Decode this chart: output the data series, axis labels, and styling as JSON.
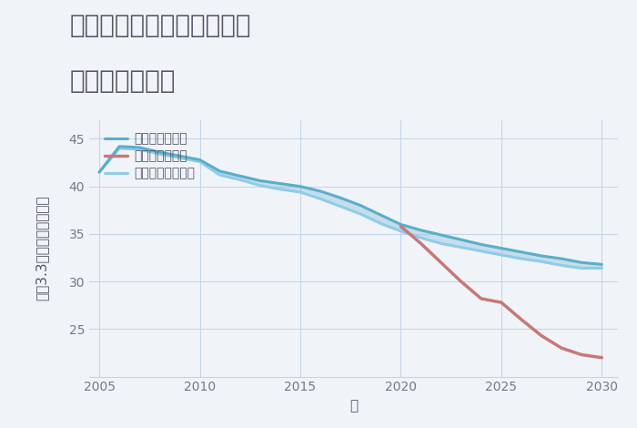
{
  "title_line1": "兵庫県姫路市野里月丘町の",
  "title_line2": "土地の価格推移",
  "xlabel": "年",
  "ylabel": "坪（3.3㎡）単価（万円）",
  "background_color": "#f0f4f8",
  "plot_bg_color": "#f0f4f8",
  "good_scenario": {
    "label": "グッドシナリオ",
    "color": "#5aaecb",
    "x": [
      2005,
      2006,
      2007,
      2008,
      2009,
      2010,
      2011,
      2012,
      2013,
      2014,
      2015,
      2016,
      2017,
      2018,
      2019,
      2020,
      2021,
      2022,
      2023,
      2024,
      2025,
      2026,
      2027,
      2028,
      2029,
      2030
    ],
    "y": [
      41.5,
      44.2,
      44.1,
      43.6,
      43.2,
      42.8,
      41.6,
      41.1,
      40.6,
      40.3,
      40.0,
      39.5,
      38.8,
      38.0,
      37.0,
      36.0,
      35.4,
      34.9,
      34.4,
      33.9,
      33.5,
      33.1,
      32.7,
      32.4,
      32.0,
      31.8
    ]
  },
  "bad_scenario": {
    "label": "バッドシナリオ",
    "color": "#c87878",
    "x": [
      2020,
      2021,
      2022,
      2023,
      2024,
      2025,
      2026,
      2027,
      2028,
      2029,
      2030
    ],
    "y": [
      35.8,
      34.0,
      32.0,
      30.0,
      28.2,
      27.8,
      26.0,
      24.3,
      23.0,
      22.3,
      22.0
    ]
  },
  "normal_scenario": {
    "label": "ノーマルシナリオ",
    "color": "#90cce8",
    "x": [
      2005,
      2006,
      2007,
      2008,
      2009,
      2010,
      2011,
      2012,
      2013,
      2014,
      2015,
      2016,
      2017,
      2018,
      2019,
      2020,
      2021,
      2022,
      2023,
      2024,
      2025,
      2026,
      2027,
      2028,
      2029,
      2030
    ],
    "y": [
      41.5,
      44.0,
      43.9,
      43.4,
      43.0,
      42.6,
      41.2,
      40.7,
      40.1,
      39.7,
      39.4,
      38.7,
      37.9,
      37.1,
      36.1,
      35.3,
      34.6,
      34.0,
      33.6,
      33.2,
      32.8,
      32.4,
      32.1,
      31.7,
      31.4,
      31.4
    ]
  },
  "ylim": [
    20,
    47
  ],
  "xlim": [
    2004.5,
    2030.8
  ],
  "yticks": [
    25,
    30,
    35,
    40,
    45
  ],
  "xticks": [
    2005,
    2010,
    2015,
    2020,
    2025,
    2030
  ],
  "title_fontsize": 20,
  "axis_label_fontsize": 11,
  "tick_fontsize": 10,
  "legend_fontsize": 10,
  "grid_color": "#c5d5e5",
  "text_color": "#555566",
  "tick_color": "#777788"
}
